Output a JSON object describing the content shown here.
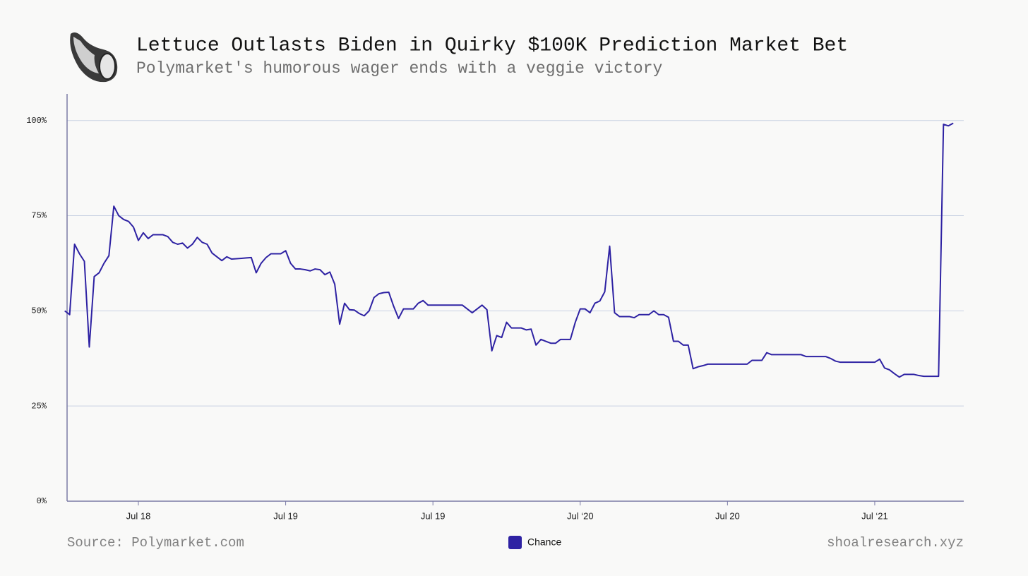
{
  "chart_data": {
    "type": "line",
    "title": "Lettuce Outlasts Biden in Quirky $100K Prediction Market Bet",
    "subtitle": "Polymarket's humorous wager ends with a veggie victory",
    "source": "Source: Polymarket.com",
    "credit": "shoalresearch.xyz",
    "categories": [
      null,
      null,
      null,
      null,
      null,
      null,
      null,
      null,
      null,
      null,
      null,
      null,
      null,
      null,
      null,
      "Jul 18",
      null,
      null,
      null,
      null,
      null,
      null,
      null,
      null,
      null,
      null,
      null,
      null,
      null,
      null,
      null,
      null,
      null,
      null,
      null,
      null,
      null,
      null,
      null,
      null,
      null,
      null,
      null,
      null,
      null,
      "Jul 19",
      null,
      null,
      null,
      null,
      null,
      null,
      null,
      null,
      null,
      null,
      null,
      null,
      null,
      null,
      null,
      null,
      null,
      null,
      null,
      null,
      null,
      null,
      null,
      null,
      null,
      null,
      null,
      null,
      null,
      "Jul 19",
      null,
      null,
      null,
      null,
      null,
      null,
      null,
      null,
      null,
      null,
      null,
      null,
      null,
      null,
      null,
      null,
      null,
      null,
      null,
      null,
      null,
      null,
      null,
      null,
      null,
      null,
      null,
      null,
      null,
      "Jul ‘20",
      null,
      null,
      null,
      null,
      null,
      null,
      null,
      null,
      null,
      null,
      null,
      null,
      null,
      null,
      null,
      null,
      null,
      null,
      null,
      null,
      null,
      null,
      null,
      null,
      null,
      null,
      null,
      null,
      null,
      "Jul 20",
      null,
      null,
      null,
      null,
      null,
      null,
      null,
      null,
      null,
      null,
      null,
      null,
      null,
      null,
      null,
      null,
      null,
      null,
      null,
      null,
      null,
      null,
      null,
      null,
      null,
      null,
      null,
      null,
      null,
      "Jul ‘21",
      null,
      null,
      null,
      null,
      null,
      null,
      null,
      null,
      null,
      null,
      null,
      null,
      null,
      null,
      null,
      null
    ],
    "series": [
      {
        "name": "Chance",
        "color": "#2e22a3",
        "values": [
          50,
          49,
          67.5,
          65,
          63,
          40.5,
          59,
          60,
          62.5,
          64.5,
          77.5,
          75,
          74,
          73.5,
          72,
          68.5,
          70.5,
          69,
          70,
          70,
          70,
          69.5,
          68,
          67.5,
          67.8,
          66.5,
          67.5,
          69.3,
          68,
          67.5,
          65.2,
          64.2,
          63.2,
          64.2,
          63.6,
          63.7,
          63.8,
          63.9,
          64,
          60,
          62.5,
          64,
          65,
          65,
          65,
          65.8,
          62.5,
          61,
          61,
          60.8,
          60.5,
          61,
          60.8,
          59.5,
          60.2,
          57,
          46.5,
          52,
          50.3,
          50.2,
          49.3,
          48.7,
          50,
          53.5,
          54.5,
          54.8,
          54.9,
          51.2,
          48,
          50.5,
          50.5,
          50.5,
          52,
          52.7,
          51.5,
          51.5,
          51.5,
          51.5,
          51.5,
          51.5,
          51.5,
          51.5,
          50.5,
          49.5,
          50.5,
          51.5,
          50.3,
          39.5,
          43.5,
          43,
          47,
          45.5,
          45.5,
          45.5,
          45,
          45.2,
          41,
          42.5,
          42,
          41.5,
          41.5,
          42.5,
          42.5,
          42.5,
          47,
          50.5,
          50.5,
          49.5,
          52,
          52.6,
          55,
          67,
          49.5,
          48.5,
          48.5,
          48.5,
          48.2,
          49,
          49,
          49,
          50,
          49,
          49,
          48.3,
          42,
          42,
          41,
          41,
          34.8,
          35.3,
          35.6,
          36,
          36,
          36,
          36,
          36,
          36,
          36,
          36,
          36,
          37,
          37,
          37,
          39,
          38.5,
          38.5,
          38.5,
          38.5,
          38.5,
          38.5,
          38.5,
          38,
          38,
          38,
          38,
          38,
          37.5,
          36.8,
          36.5,
          36.5,
          36.5,
          36.5,
          36.5,
          36.5,
          36.5,
          36.5,
          37.3,
          35,
          34.5,
          33.5,
          32.6,
          33.3,
          33.3,
          33.3,
          33,
          32.8,
          32.8,
          32.8,
          32.8,
          99,
          98.6,
          99.3
        ]
      }
    ],
    "ylim": [
      0,
      107
    ],
    "yticks": [
      {
        "value": 0,
        "label": "0%"
      },
      {
        "value": 25,
        "label": "25%"
      },
      {
        "value": 50,
        "label": "50%"
      },
      {
        "value": 75,
        "label": "75%"
      },
      {
        "value": 100,
        "label": "100%"
      }
    ],
    "grid": true
  }
}
